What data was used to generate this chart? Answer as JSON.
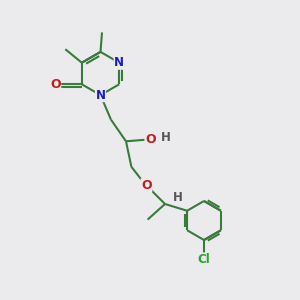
{
  "background_color": "#ebebee",
  "bond_color": "#3a7a3a",
  "bond_width": 1.5,
  "atom_colors": {
    "N": "#1a1acc",
    "O": "#cc1a1a",
    "Cl": "#22aa22",
    "H": "#555555"
  },
  "figsize": [
    3.0,
    3.0
  ],
  "dpi": 100
}
